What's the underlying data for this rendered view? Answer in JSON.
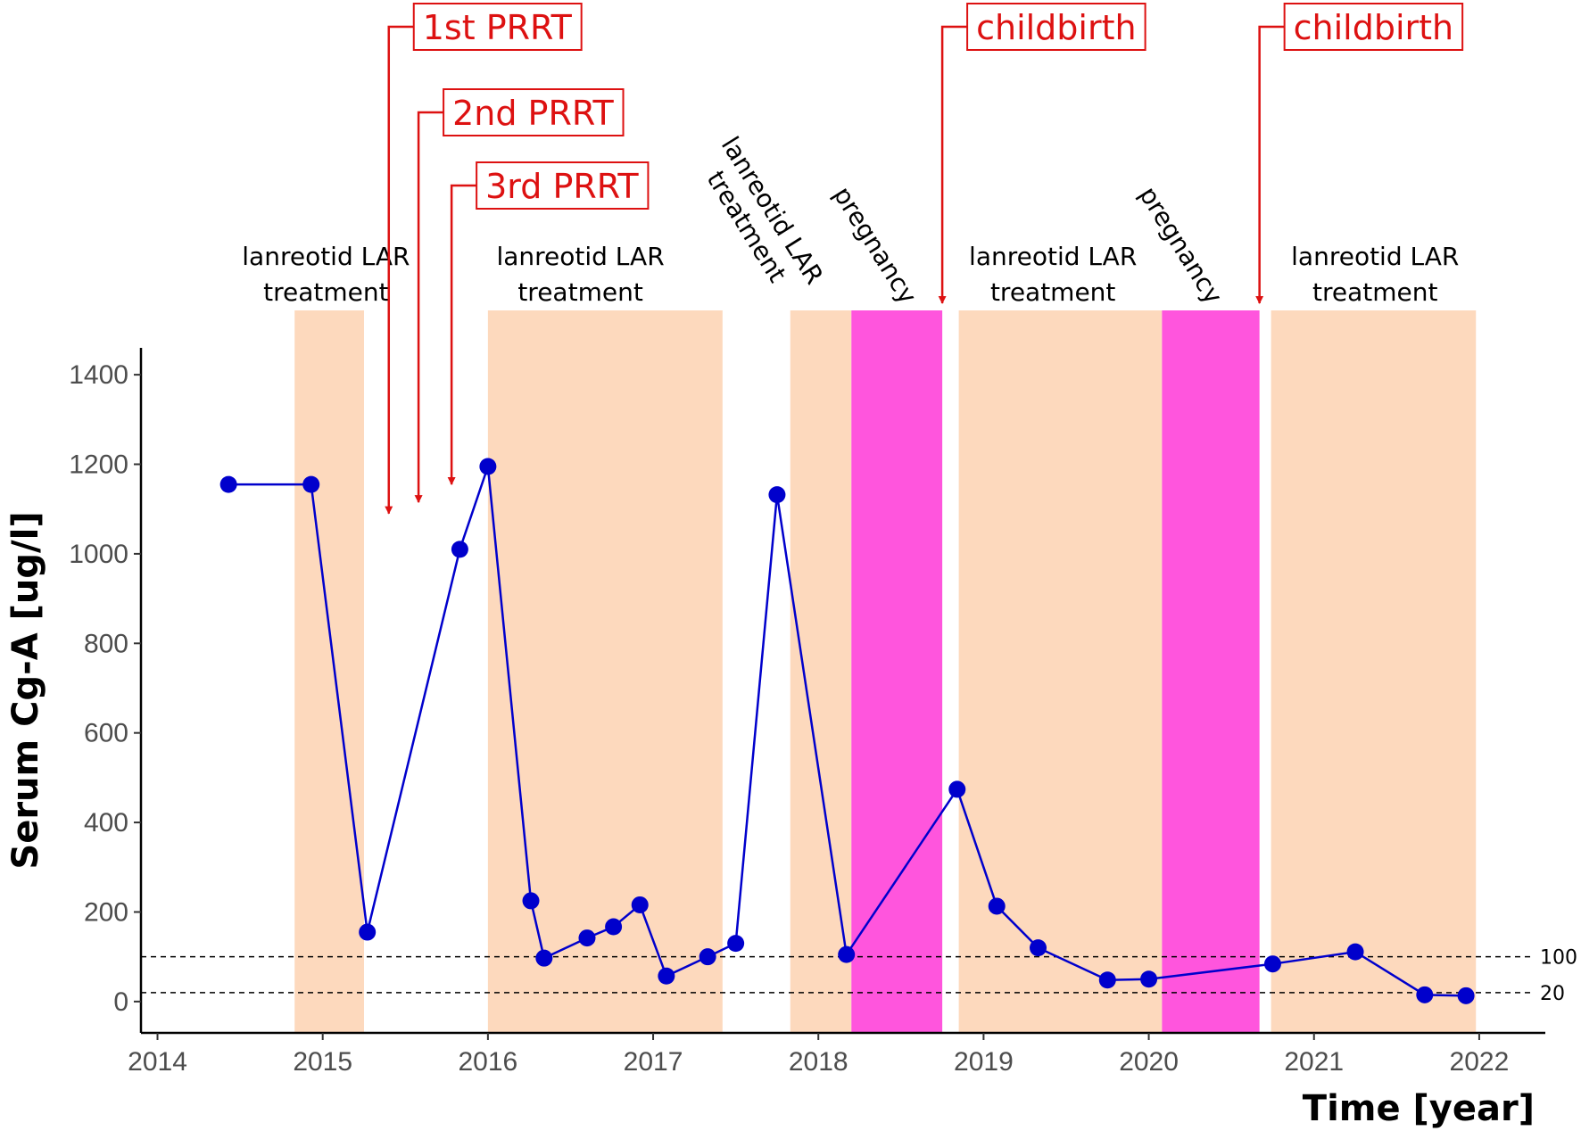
{
  "chart_data": {
    "type": "line",
    "title": "",
    "xlabel": "Time [year]",
    "ylabel": "Serum Cg-A [ug/l]",
    "xlim": [
      2013.9,
      2022.4
    ],
    "ylim": [
      -70,
      1460
    ],
    "x_ticks": [
      2014,
      2015,
      2016,
      2017,
      2018,
      2019,
      2020,
      2021,
      2022
    ],
    "y_ticks": [
      0,
      200,
      400,
      600,
      800,
      1000,
      1200,
      1400
    ],
    "series": [
      {
        "name": "Serum Cg-A",
        "color": "#0000cc",
        "x": [
          2014.43,
          2014.93,
          2015.27,
          2015.83,
          2016.0,
          2016.26,
          2016.34,
          2016.6,
          2016.76,
          2016.92,
          2017.08,
          2017.33,
          2017.5,
          2017.75,
          2018.17,
          2018.84,
          2019.08,
          2019.33,
          2019.75,
          2020.0,
          2020.75,
          2021.25,
          2021.67,
          2021.92
        ],
        "y": [
          1155,
          1155,
          155,
          1010,
          1195,
          225,
          97,
          142,
          167,
          216,
          57,
          100,
          130,
          1132,
          105,
          474,
          213,
          120,
          48,
          50,
          84,
          111,
          15,
          13
        ]
      }
    ],
    "reference_lines": [
      {
        "value": 100,
        "label": "100"
      },
      {
        "value": 20,
        "label": "20"
      }
    ],
    "periods": [
      {
        "type": "treatment",
        "start": 2014.83,
        "end": 2015.25,
        "color": "#fdd9bd"
      },
      {
        "type": "treatment",
        "start": 2016.0,
        "end": 2017.42,
        "color": "#fdd9bd"
      },
      {
        "type": "treatment",
        "start": 2017.83,
        "end": 2018.2,
        "color": "#fdd9bd"
      },
      {
        "type": "pregnancy",
        "start": 2018.2,
        "end": 2018.75,
        "color": "#ff55dd"
      },
      {
        "type": "treatment",
        "start": 2018.85,
        "end": 2020.08,
        "color": "#fdd9bd"
      },
      {
        "type": "pregnancy",
        "start": 2020.08,
        "end": 2020.67,
        "color": "#ff55dd"
      },
      {
        "type": "treatment",
        "start": 2020.74,
        "end": 2021.98,
        "color": "#fdd9bd"
      }
    ],
    "period_labels": [
      {
        "lines": [
          "lanreotid LAR",
          "treatment"
        ],
        "x": 2015.02
      },
      {
        "lines": [
          "lanreotid LAR",
          "treatment"
        ],
        "x": 2016.56
      },
      {
        "lines": [
          "lanreotid LAR",
          "treatment"
        ],
        "x": 2017.6,
        "rotated": true
      },
      {
        "lines": [
          "pregnancy"
        ],
        "x": 2018.3,
        "rotated": true
      },
      {
        "lines": [
          "lanreotid LAR",
          "treatment"
        ],
        "x": 2019.42
      },
      {
        "lines": [
          "pregnancy"
        ],
        "x": 2020.15,
        "rotated": true
      },
      {
        "lines": [
          "lanreotid LAR",
          "treatment"
        ],
        "x": 2021.37
      }
    ],
    "events": [
      {
        "label": "1st PRRT",
        "x": 2015.4,
        "arrow_tip_y": 1090
      },
      {
        "label": "2nd PRRT",
        "x": 2015.58,
        "arrow_tip_y": 1115
      },
      {
        "label": "3rd PRRT",
        "x": 2015.78,
        "arrow_tip_y": 1155
      },
      {
        "label": "childbirth",
        "x": 2018.75,
        "arrow_tip_y": 1560
      },
      {
        "label": "childbirth",
        "x": 2020.67,
        "arrow_tip_y": 1560
      }
    ],
    "colors": {
      "line": "#0000cc",
      "event": "#dd1111",
      "treatment": "#fdd9bd",
      "pregnancy": "#ff55dd"
    }
  }
}
